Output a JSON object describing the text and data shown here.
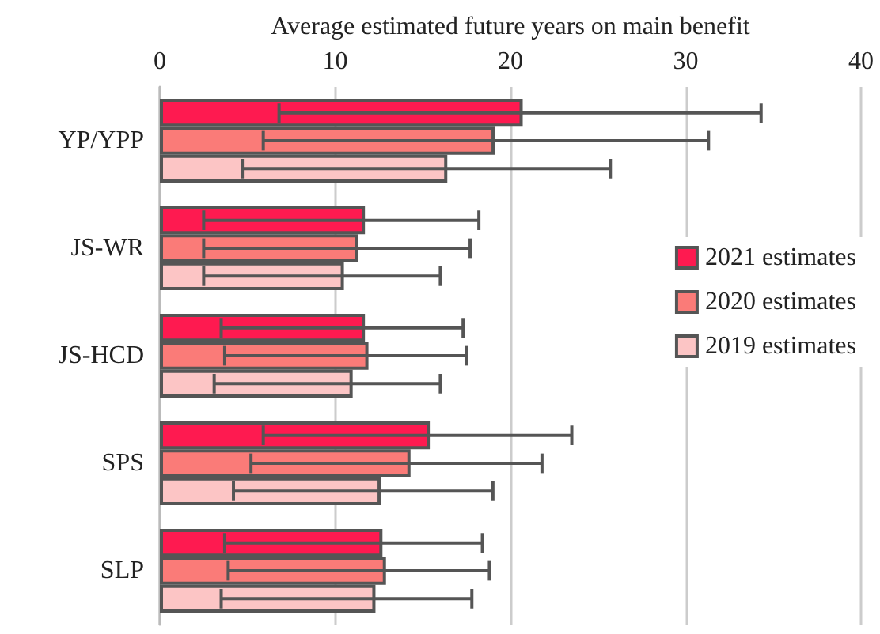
{
  "chart_data": {
    "type": "bar",
    "orientation": "horizontal",
    "xlabel": "Average estimated future years on main benefit",
    "categories": [
      "YP/YPP",
      "JS-WR",
      "JS-HCD",
      "SPS",
      "SLP"
    ],
    "series": [
      {
        "name": "2021 estimates",
        "color": "#fe1a50",
        "values": [
          20.7,
          11.7,
          11.7,
          15.4,
          12.7
        ],
        "errors": [
          [
            6.8,
            34.3
          ],
          [
            2.5,
            18.2
          ],
          [
            3.5,
            17.3
          ],
          [
            5.9,
            23.5
          ],
          [
            3.7,
            18.4
          ]
        ]
      },
      {
        "name": "2020 estimates",
        "color": "#fa7b78",
        "values": [
          19.1,
          11.3,
          11.9,
          14.3,
          12.9
        ],
        "errors": [
          [
            5.9,
            31.3
          ],
          [
            2.5,
            17.7
          ],
          [
            3.7,
            17.5
          ],
          [
            5.2,
            21.8
          ],
          [
            3.9,
            18.8
          ]
        ]
      },
      {
        "name": "2019 estimates",
        "color": "#fcc5c5",
        "values": [
          16.4,
          10.5,
          11.0,
          12.6,
          12.3
        ],
        "errors": [
          [
            4.7,
            25.7
          ],
          [
            2.5,
            16.0
          ],
          [
            3.1,
            16.0
          ],
          [
            4.2,
            19.0
          ],
          [
            3.5,
            17.8
          ]
        ]
      }
    ],
    "xlim": [
      0,
      40
    ],
    "xticks": [
      0,
      10,
      20,
      30,
      40
    ],
    "grid": "x",
    "legend": "right"
  }
}
